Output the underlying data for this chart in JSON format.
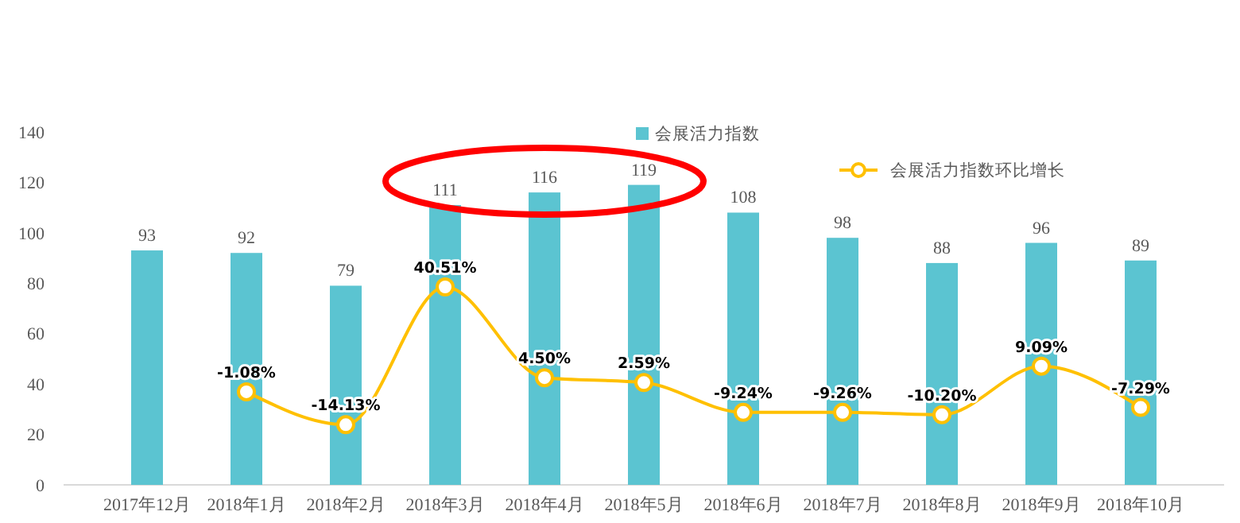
{
  "chart_data": {
    "type": "bar",
    "categories": [
      "2017年12月",
      "2018年1月",
      "2018年2月",
      "2018年3月",
      "2018年4月",
      "2018年5月",
      "2018年6月",
      "2018年7月",
      "2018年8月",
      "2018年9月",
      "2018年10月"
    ],
    "series": [
      {
        "name": "会展活力指数",
        "color": "#5bc4d1",
        "values": [
          93,
          92,
          79,
          111,
          116,
          119,
          108,
          98,
          88,
          96,
          89
        ],
        "value_labels": [
          "93",
          "92",
          "79",
          "111",
          "116",
          "119",
          "108",
          "98",
          "88",
          "96",
          "89"
        ]
      },
      {
        "name": "会展活力指数环比增长",
        "type": "line",
        "axis": "y2",
        "color": "#ffc000",
        "marker": "circle",
        "values": [
          null,
          -1.08,
          -14.13,
          40.51,
          4.5,
          2.59,
          -9.24,
          -9.26,
          -10.2,
          9.09,
          -7.29
        ],
        "value_labels": [
          null,
          "-1.08%",
          "-14.13%",
          "40.51%",
          "4.50%",
          "2.59%",
          "-9.24%",
          "-9.26%",
          "-10.20%",
          "9.09%",
          "-7.29%"
        ]
      }
    ],
    "ylim": [
      0,
      140
    ],
    "yticks": [
      0,
      20,
      40,
      60,
      80,
      100,
      120,
      140
    ],
    "y2lim": [
      -38,
      102
    ],
    "grid": false,
    "legend": "top"
  }
}
